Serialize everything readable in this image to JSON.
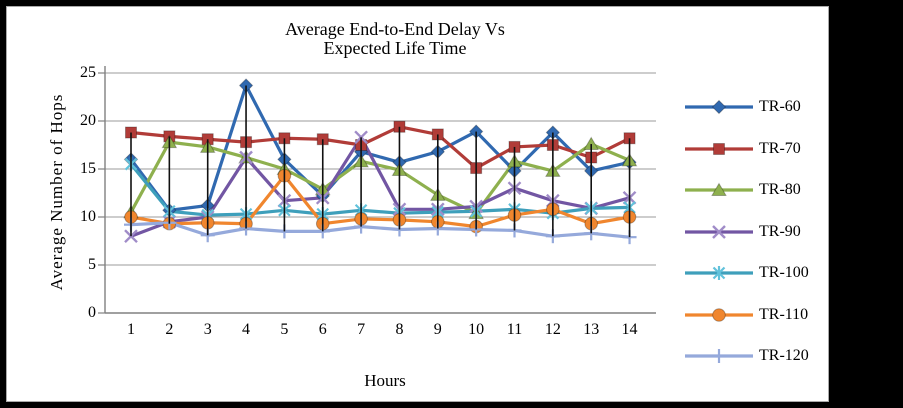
{
  "chart_data": {
    "type": "line",
    "title_line1": "Average End-to-End Delay Vs",
    "title_line2": "Expected Life Time",
    "xlabel": "Hours",
    "ylabel": "Average Number of Hops",
    "x": [
      1,
      2,
      3,
      4,
      5,
      6,
      7,
      8,
      9,
      10,
      11,
      12,
      13,
      14
    ],
    "ylim": [
      0,
      25
    ],
    "yticks": [
      0,
      5,
      10,
      15,
      20,
      25
    ],
    "grid": true,
    "legend_position": "right",
    "high_low_lines": true,
    "colors": {
      "gridline": "#9b9b9b",
      "axis": "#808080",
      "drop_line": "#111111",
      "panel_border": "#a9a9a9"
    },
    "series": [
      {
        "name": "TR-60",
        "marker": "diamond",
        "color": "#3069b0",
        "marker_color": "#3069b0",
        "values": [
          16.0,
          10.7,
          11.2,
          23.7,
          16.0,
          12.2,
          16.8,
          15.7,
          16.8,
          18.9,
          14.8,
          18.8,
          14.8,
          15.7
        ]
      },
      {
        "name": "TR-70",
        "marker": "square",
        "color": "#b13c38",
        "marker_color": "#b13c38",
        "values": [
          18.8,
          18.4,
          18.1,
          17.8,
          18.2,
          18.1,
          17.5,
          19.4,
          18.6,
          15.1,
          17.3,
          17.5,
          16.2,
          18.2
        ]
      },
      {
        "name": "TR-80",
        "marker": "triangle",
        "color": "#8eb04e",
        "marker_color": "#8eb04e",
        "values": [
          10.5,
          17.8,
          17.3,
          16.2,
          15.0,
          12.9,
          15.8,
          14.9,
          12.3,
          10.4,
          15.8,
          14.8,
          17.6,
          15.9
        ]
      },
      {
        "name": "TR-90",
        "marker": "x",
        "color": "#7256a3",
        "marker_color": "#a08cc8",
        "values": [
          8.0,
          9.5,
          10.0,
          16.2,
          11.7,
          12.0,
          18.3,
          10.8,
          10.8,
          11.1,
          13.0,
          11.7,
          10.9,
          12.0
        ]
      },
      {
        "name": "TR-100",
        "marker": "asterisk",
        "color": "#3e9fbb",
        "marker_color": "#62c2db",
        "values": [
          15.5,
          10.6,
          10.2,
          10.3,
          10.7,
          10.3,
          10.7,
          10.4,
          10.5,
          10.6,
          10.8,
          10.4,
          10.9,
          11.0
        ]
      },
      {
        "name": "TR-110",
        "marker": "circle",
        "color": "#f0862e",
        "marker_color": "#f0862e",
        "values": [
          10.0,
          9.3,
          9.4,
          9.3,
          14.3,
          9.3,
          9.8,
          9.7,
          9.5,
          9.0,
          10.2,
          10.8,
          9.3,
          10.0
        ]
      },
      {
        "name": "TR-120",
        "marker": "plus",
        "color": "#95a9db",
        "marker_color": "#95a9db",
        "values": [
          9.2,
          9.4,
          8.1,
          8.8,
          8.5,
          8.5,
          9.0,
          8.7,
          8.8,
          8.7,
          8.6,
          8.0,
          8.3,
          7.9
        ]
      }
    ]
  }
}
